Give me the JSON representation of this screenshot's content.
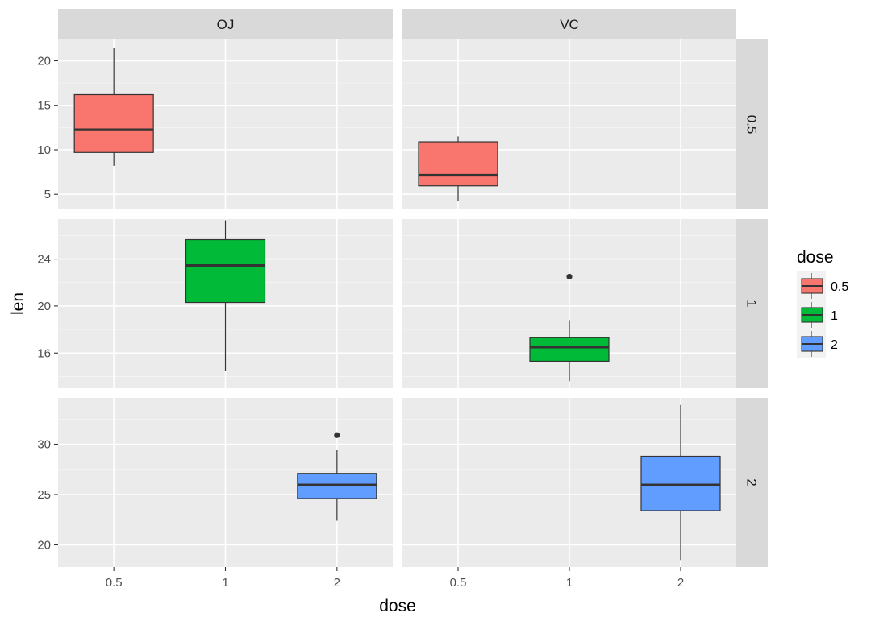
{
  "chart_data": {
    "type": "boxplot",
    "facet_cols": [
      "OJ",
      "VC"
    ],
    "facet_rows": [
      "0.5",
      "1",
      "2"
    ],
    "x_categories": [
      "0.5",
      "1",
      "2"
    ],
    "xlabel": "dose",
    "ylabel": "len",
    "row_scales": [
      {
        "ylim": [
          3.3,
          22.4
        ],
        "ticks": [
          5,
          10,
          15,
          20
        ],
        "tick_labels": [
          "5",
          "10",
          "15",
          "20"
        ]
      },
      {
        "ylim": [
          13.0,
          27.4
        ],
        "ticks": [
          16,
          20,
          24
        ],
        "tick_labels": [
          "16",
          "20",
          "24"
        ]
      },
      {
        "ylim": [
          17.8,
          34.6
        ],
        "ticks": [
          20,
          25,
          30
        ],
        "tick_labels": [
          "20",
          "25",
          "30"
        ]
      }
    ],
    "panels": [
      {
        "supp": "OJ",
        "dose": "0.5",
        "x_index": 0,
        "whisker_low": 8.2,
        "q1": 9.7,
        "median": 12.25,
        "q3": 16.2,
        "whisker_high": 21.5,
        "outliers": []
      },
      {
        "supp": "VC",
        "dose": "0.5",
        "x_index": 0,
        "whisker_low": 4.2,
        "q1": 5.95,
        "median": 7.15,
        "q3": 10.9,
        "whisker_high": 11.5,
        "outliers": []
      },
      {
        "supp": "OJ",
        "dose": "1",
        "x_index": 1,
        "whisker_low": 14.5,
        "q1": 20.3,
        "median": 23.45,
        "q3": 25.65,
        "whisker_high": 27.3,
        "outliers": []
      },
      {
        "supp": "VC",
        "dose": "1",
        "x_index": 1,
        "whisker_low": 13.6,
        "q1": 15.3,
        "median": 16.5,
        "q3": 17.3,
        "whisker_high": 18.8,
        "outliers": [
          22.5
        ]
      },
      {
        "supp": "OJ",
        "dose": "2",
        "x_index": 2,
        "whisker_low": 22.4,
        "q1": 24.6,
        "median": 25.95,
        "q3": 27.1,
        "whisker_high": 29.4,
        "outliers": [
          30.9
        ]
      },
      {
        "supp": "VC",
        "dose": "2",
        "x_index": 2,
        "whisker_low": 18.5,
        "q1": 23.4,
        "median": 25.95,
        "q3": 28.8,
        "whisker_high": 33.9,
        "outliers": []
      }
    ],
    "legend": {
      "title": "dose",
      "placement": "right",
      "entries": [
        {
          "label": "0.5",
          "color": "#F8766D"
        },
        {
          "label": "1",
          "color": "#00BA38"
        },
        {
          "label": "2",
          "color": "#619CFF"
        }
      ]
    },
    "grid": true,
    "panel_background": "#EBEBEB",
    "strip_background": "#D9D9D9"
  }
}
